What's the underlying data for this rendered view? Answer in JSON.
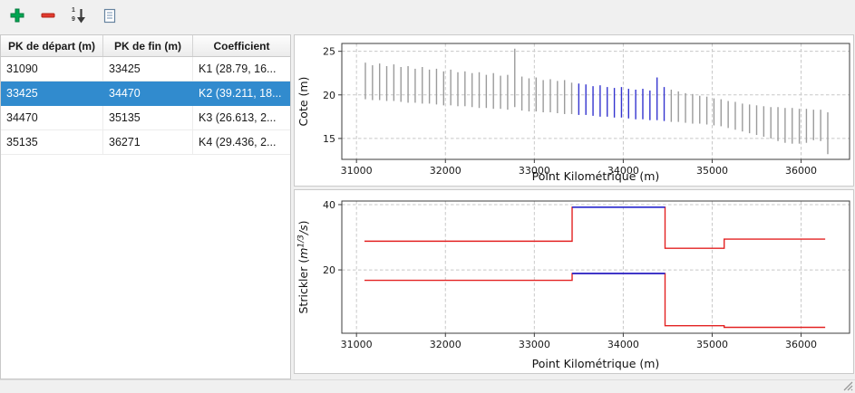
{
  "toolbar": {
    "buttons": [
      {
        "label": "add",
        "icon": "plus-icon"
      },
      {
        "label": "remove",
        "icon": "minus-icon"
      },
      {
        "label": "sort",
        "icon": "sort-numeric-icon"
      },
      {
        "label": "report",
        "icon": "document-icon"
      }
    ],
    "sort_digits": [
      "1",
      "9"
    ]
  },
  "table": {
    "columns": [
      "PK de départ (m)",
      "PK de fin (m)",
      "Coefficient"
    ],
    "rows": [
      {
        "start": "31090",
        "end": "33425",
        "coef": "K1 (28.79, 16..."
      },
      {
        "start": "33425",
        "end": "34470",
        "coef": "K2 (39.211, 18..."
      },
      {
        "start": "34470",
        "end": "35135",
        "coef": "K3 (26.613, 2..."
      },
      {
        "start": "35135",
        "end": "36271",
        "coef": "K4 (29.436, 2..."
      }
    ],
    "selected_index": 1
  },
  "colors": {
    "selection_blue": "#318bce",
    "bar_gray": "#9b9b9b",
    "highlight_blue": "#3434cf",
    "line_red": "#e32222",
    "line_blue": "#2626cc"
  },
  "chart_data": [
    {
      "type": "interval-bars",
      "title": "",
      "xlabel": "Point Kilométrique (m)",
      "ylabel": "Cote (m)",
      "xlim": [
        30835,
        36545
      ],
      "ylim": [
        12.6,
        25.9
      ],
      "xticks": [
        31000,
        32000,
        33000,
        34000,
        35000,
        36000
      ],
      "yticks": [
        15,
        20,
        25
      ],
      "grid": true,
      "highlight_range": [
        33425,
        34470
      ],
      "bar_color": "#9b9b9b",
      "highlight_color": "#3434cf",
      "bars": [
        [
          31100,
          23.7,
          19.5
        ],
        [
          31180,
          23.4,
          19.4
        ],
        [
          31260,
          23.6,
          19.4
        ],
        [
          31340,
          23.3,
          19.3
        ],
        [
          31420,
          23.5,
          19.3
        ],
        [
          31500,
          23.2,
          19.2
        ],
        [
          31580,
          23.3,
          19.1
        ],
        [
          31660,
          23.0,
          19.1
        ],
        [
          31740,
          23.2,
          19.0
        ],
        [
          31820,
          22.9,
          19.0
        ],
        [
          31900,
          23.0,
          18.9
        ],
        [
          31980,
          22.7,
          18.8
        ],
        [
          32060,
          22.9,
          18.8
        ],
        [
          32140,
          22.6,
          18.7
        ],
        [
          32220,
          22.7,
          18.7
        ],
        [
          32300,
          22.5,
          18.6
        ],
        [
          32380,
          22.6,
          18.5
        ],
        [
          32460,
          22.3,
          18.5
        ],
        [
          32540,
          22.5,
          18.4
        ],
        [
          32620,
          22.2,
          18.4
        ],
        [
          32700,
          22.3,
          18.3
        ],
        [
          32780,
          25.3,
          18.6
        ],
        [
          32860,
          22.1,
          18.2
        ],
        [
          32940,
          21.9,
          18.1
        ],
        [
          33020,
          22.0,
          18.1
        ],
        [
          33100,
          21.7,
          18.0
        ],
        [
          33180,
          21.8,
          18.0
        ],
        [
          33260,
          21.6,
          17.9
        ],
        [
          33340,
          21.7,
          17.8
        ],
        [
          33420,
          21.4,
          17.8
        ],
        [
          33500,
          21.3,
          17.7
        ],
        [
          33580,
          21.2,
          17.7
        ],
        [
          33660,
          21.0,
          17.6
        ],
        [
          33740,
          21.1,
          17.5
        ],
        [
          33820,
          20.9,
          17.5
        ],
        [
          33900,
          20.8,
          17.4
        ],
        [
          33980,
          20.9,
          17.4
        ],
        [
          34060,
          20.7,
          17.3
        ],
        [
          34140,
          20.6,
          17.2
        ],
        [
          34220,
          20.7,
          17.2
        ],
        [
          34300,
          20.5,
          17.1
        ],
        [
          34380,
          22.0,
          17.1
        ],
        [
          34460,
          20.9,
          17.0
        ],
        [
          34540,
          20.6,
          16.9
        ],
        [
          34620,
          20.4,
          16.9
        ],
        [
          34700,
          20.2,
          16.8
        ],
        [
          34780,
          20.1,
          16.7
        ],
        [
          34860,
          19.9,
          16.7
        ],
        [
          34940,
          19.8,
          16.6
        ],
        [
          35020,
          19.6,
          16.5
        ],
        [
          35100,
          19.5,
          16.4
        ],
        [
          35180,
          19.3,
          16.2
        ],
        [
          35260,
          19.2,
          16.0
        ],
        [
          35340,
          19.0,
          15.8
        ],
        [
          35420,
          18.9,
          15.6
        ],
        [
          35500,
          18.8,
          15.4
        ],
        [
          35580,
          18.7,
          15.2
        ],
        [
          35660,
          18.6,
          15.0
        ],
        [
          35740,
          18.6,
          14.7
        ],
        [
          35820,
          18.5,
          14.5
        ],
        [
          35900,
          18.5,
          14.4
        ],
        [
          35980,
          18.4,
          14.4
        ],
        [
          36060,
          18.4,
          14.5
        ],
        [
          36140,
          18.3,
          14.8
        ],
        [
          36220,
          18.3,
          14.7
        ],
        [
          36300,
          18.0,
          13.2
        ]
      ]
    },
    {
      "type": "step",
      "title": "",
      "xlabel": "Point Kilométrique (m)",
      "ylabel": "Strickler (m^{1/3}/s)",
      "ylabel_parts": [
        {
          "t": "Strickler ("
        },
        {
          "t": "m",
          "i": 1
        },
        {
          "t": "1/3",
          "i": 1,
          "sup": 1
        },
        {
          "t": "/s",
          "i": 1
        },
        {
          "t": ")"
        }
      ],
      "xlim": [
        30835,
        36545
      ],
      "ylim": [
        0.6,
        41.1
      ],
      "xticks": [
        31000,
        32000,
        33000,
        34000,
        35000,
        36000
      ],
      "yticks": [
        20,
        40
      ],
      "grid": true,
      "line_color": "#e32222",
      "selected_color": "#2626cc",
      "segments": [
        {
          "x0": 31090,
          "x1": 33425,
          "main": 28.79,
          "floodplain": 16.8,
          "selected": false
        },
        {
          "x0": 33425,
          "x1": 34470,
          "main": 39.211,
          "floodplain": 18.9,
          "selected": true
        },
        {
          "x0": 34470,
          "x1": 35135,
          "main": 26.613,
          "floodplain": 2.9,
          "selected": false
        },
        {
          "x0": 35135,
          "x1": 36271,
          "main": 29.436,
          "floodplain": 2.4,
          "selected": false
        }
      ]
    }
  ]
}
